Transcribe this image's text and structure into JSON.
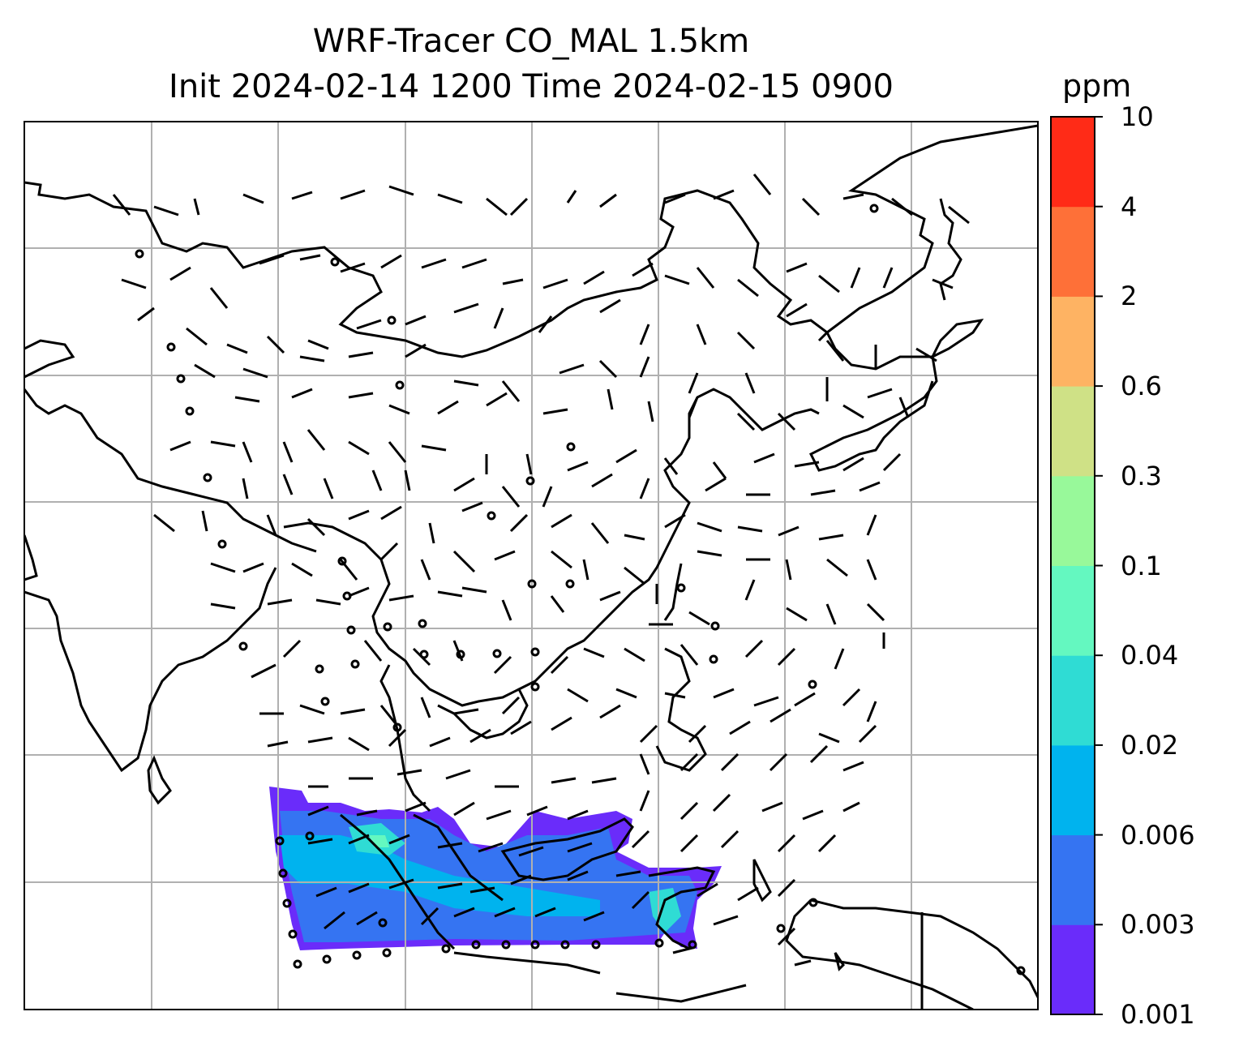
{
  "title_line1": "WRF-Tracer CO_MAL 1.5km",
  "title_line2": "Init 2024-02-14 1200 Time 2024-02-15 0900",
  "colorbar": {
    "unit": "ppm",
    "levels": [
      "0.001",
      "0.003",
      "0.006",
      "0.02",
      "0.04",
      "0.1",
      "0.3",
      "0.6",
      "2",
      "4",
      "10"
    ],
    "colors": [
      "#6a2cfa",
      "#3574f2",
      "#00b3ee",
      "#2fdcd4",
      "#64f8c0",
      "#98f99a",
      "#cfe186",
      "#feb363",
      "#fe7038",
      "#ff2b17"
    ]
  },
  "map": {
    "projection_grid_lines": true,
    "field": "CO tracer concentration",
    "wind_barbs": true,
    "region": "Southeast and East Asia"
  }
}
